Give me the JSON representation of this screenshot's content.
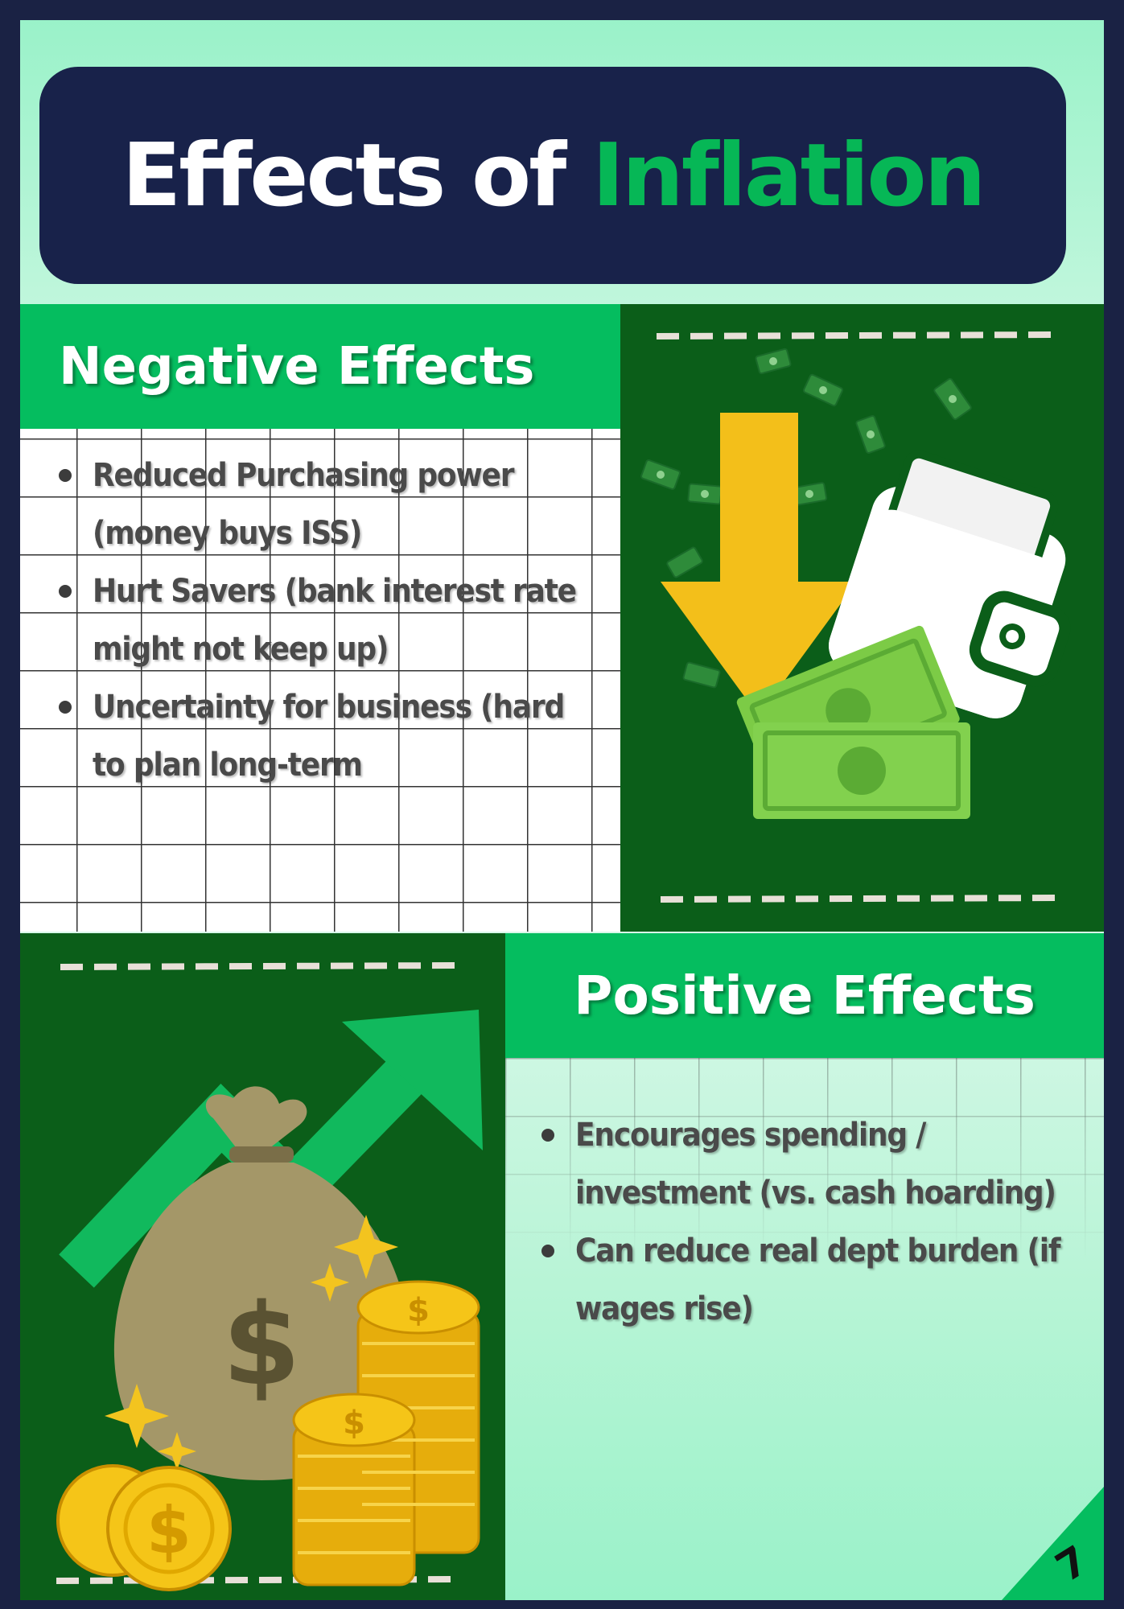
{
  "title": {
    "part1": "Effects of",
    "accent": "Inflation"
  },
  "negative": {
    "heading": "Negative Effects",
    "items": [
      "Reduced Purchasing power (money buys ISS)",
      "Hurt Savers (bank interest rate might not keep up)",
      "Uncertainty for business (hard to plan long-term"
    ]
  },
  "positive": {
    "heading": "Positive Effects",
    "items": [
      "Encourages spending / investment (vs. cash hoarding)",
      "Can reduce real dept burden (if wages rise)"
    ]
  },
  "page_number": "7",
  "icons": {
    "negative_illustration": "down-arrow-wallet-money-icon",
    "positive_illustration": "money-bag-coins-up-arrow-icon"
  },
  "colors": {
    "navy": "#18224a",
    "green": "#05bd5f",
    "dark_green": "#0b5e19",
    "gold": "#f4c01c",
    "mint": "#9af2c9"
  }
}
